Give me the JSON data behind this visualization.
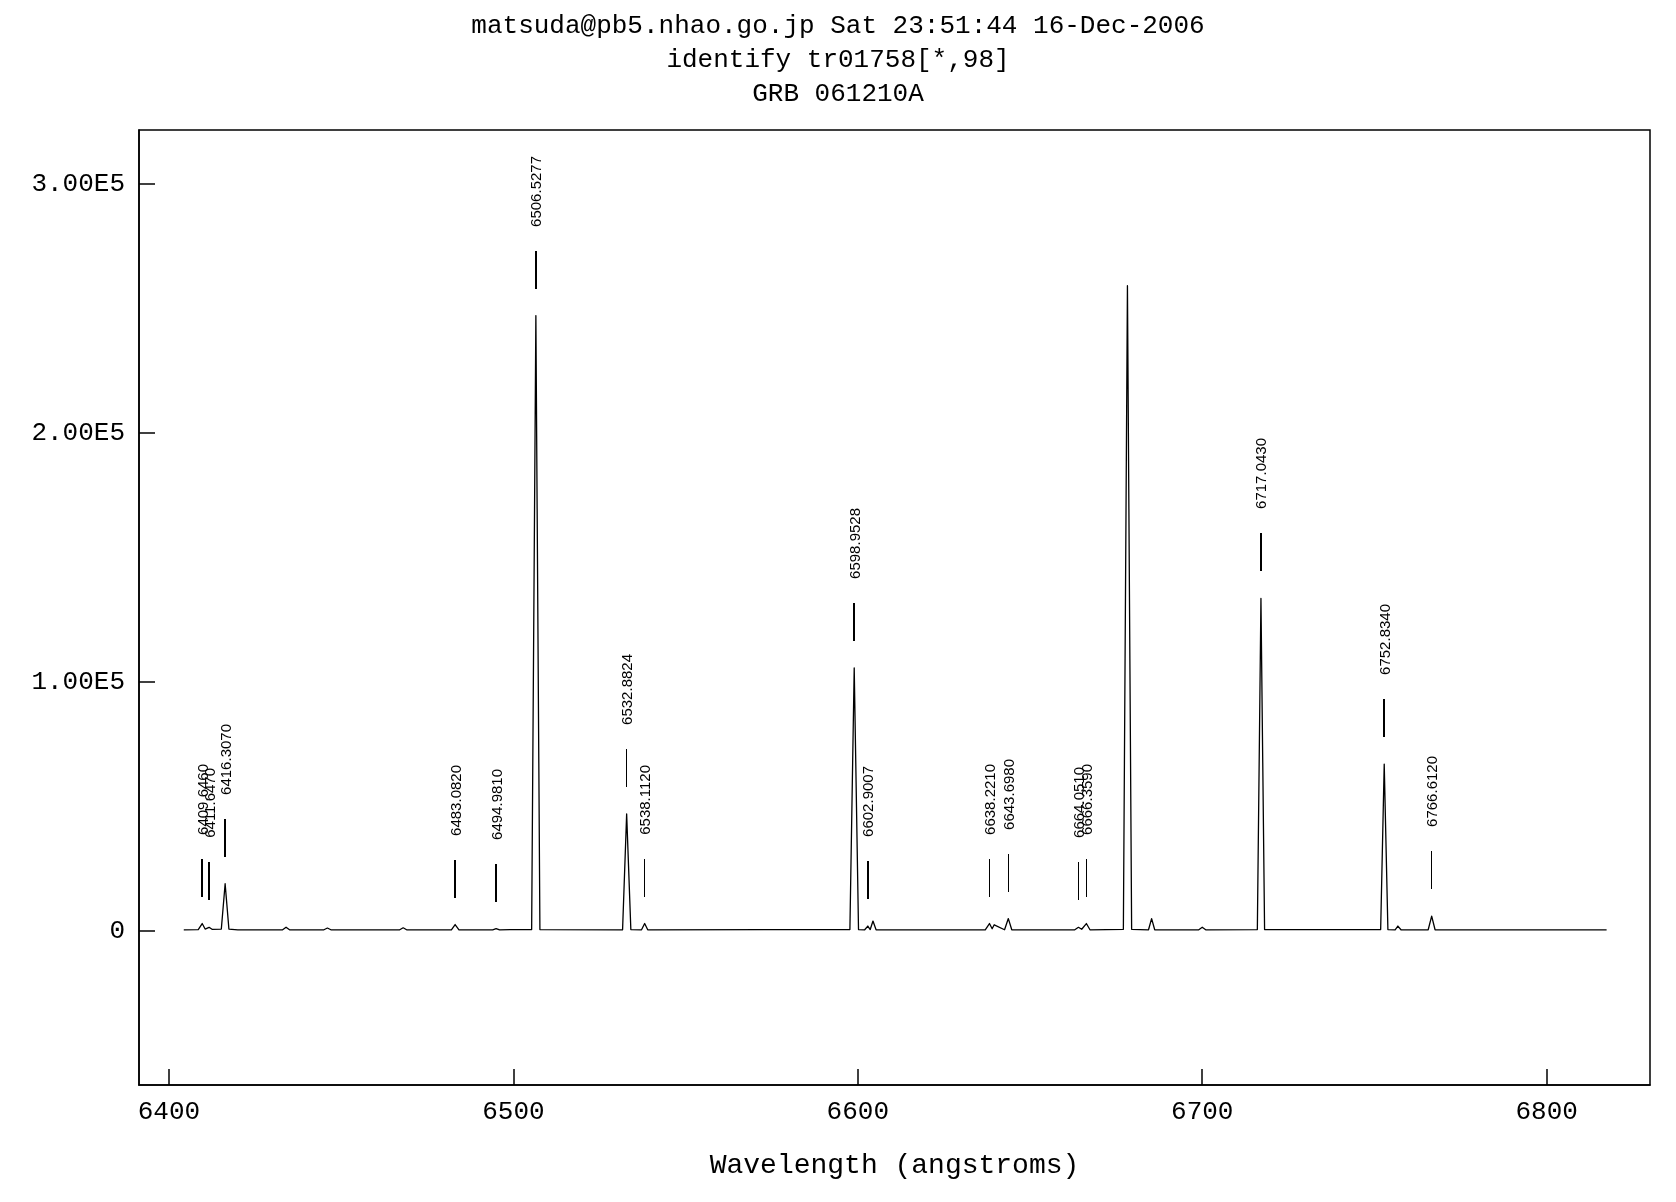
{
  "chart_data": {
    "type": "line",
    "title": "matsuda@pb5.nhao.go.jp Sat 23:51:44 16-Dec-2006",
    "subtitle": "identify tr01758[*,98]\nGRB 061210A",
    "xlabel": "Wavelength (angstroms)",
    "series": [
      {
        "color": "#000000",
        "x": [
          6404.3,
          6408.5,
          6409.646,
          6410.5,
          6411.647,
          6412.5,
          6415.2,
          6416.307,
          6417.4,
          6420,
          6433,
          6434,
          6435,
          6445,
          6446,
          6447,
          6467,
          6468,
          6469,
          6482,
          6483.082,
          6484.2,
          6494,
          6494.981,
          6496,
          6505.3,
          6506.5277,
          6507.7,
          6531.7,
          6532.8824,
          6534.1,
          6537.2,
          6538.112,
          6539,
          6597.7,
          6598.9528,
          6600.2,
          6602,
          6602.9007,
          6603.6,
          6604.4,
          6605.3,
          6637,
          6638.221,
          6639,
          6639.6,
          6642.6,
          6643.698,
          6644.7,
          6663,
          6664.051,
          6665,
          6666.359,
          6667.4,
          6677.1,
          6678.28,
          6679.5,
          6684.4,
          6685.3,
          6686.2,
          6699,
          6700,
          6701,
          6716,
          6717.043,
          6718.1,
          6751.8,
          6752.834,
          6753.9,
          6756,
          6756.8,
          6757.7,
          6765.6,
          6766.612,
          6767.6,
          6817.4
        ],
        "values": [
          500,
          600,
          3000,
          800,
          1500,
          700,
          800,
          19000,
          800,
          500,
          500,
          1500,
          500,
          500,
          1200,
          500,
          500,
          1300,
          500,
          500,
          2600,
          500,
          500,
          1000,
          500,
          600,
          247000,
          600,
          500,
          47000,
          600,
          500,
          3000,
          500,
          600,
          105600,
          600,
          500,
          2000,
          600,
          4000,
          500,
          500,
          3000,
          900,
          2500,
          500,
          5000,
          500,
          500,
          1500,
          700,
          3000,
          500,
          700,
          259000,
          700,
          500,
          5000,
          500,
          500,
          1500,
          500,
          600,
          133500,
          600,
          600,
          67000,
          600,
          500,
          2000,
          500,
          500,
          6000,
          500,
          500
        ]
      }
    ],
    "xlim": [
      6391.3,
      6830
    ],
    "xticks": [
      6400,
      6500,
      6600,
      6700,
      6800
    ],
    "ylim": [
      -61800,
      321500
    ],
    "yticks": [
      {
        "value": 0,
        "label": "0"
      },
      {
        "value": 100000,
        "label": "1.00E5"
      },
      {
        "value": 200000,
        "label": "2.00E5"
      },
      {
        "value": 300000,
        "label": "3.00E5"
      }
    ],
    "grid": false,
    "marker": "none",
    "annotations": [
      "6409.6460",
      "6411.6470",
      "6416.3070",
      "6483.0820",
      "6494.9810",
      "6506.5277",
      "6532.8824",
      "6538.1120",
      "6598.9528",
      "6602.9007",
      "6638.2210",
      "6643.6980",
      "6664.0510",
      "6666.3590",
      "6717.0430",
      "6752.8340",
      "6766.6120"
    ]
  }
}
